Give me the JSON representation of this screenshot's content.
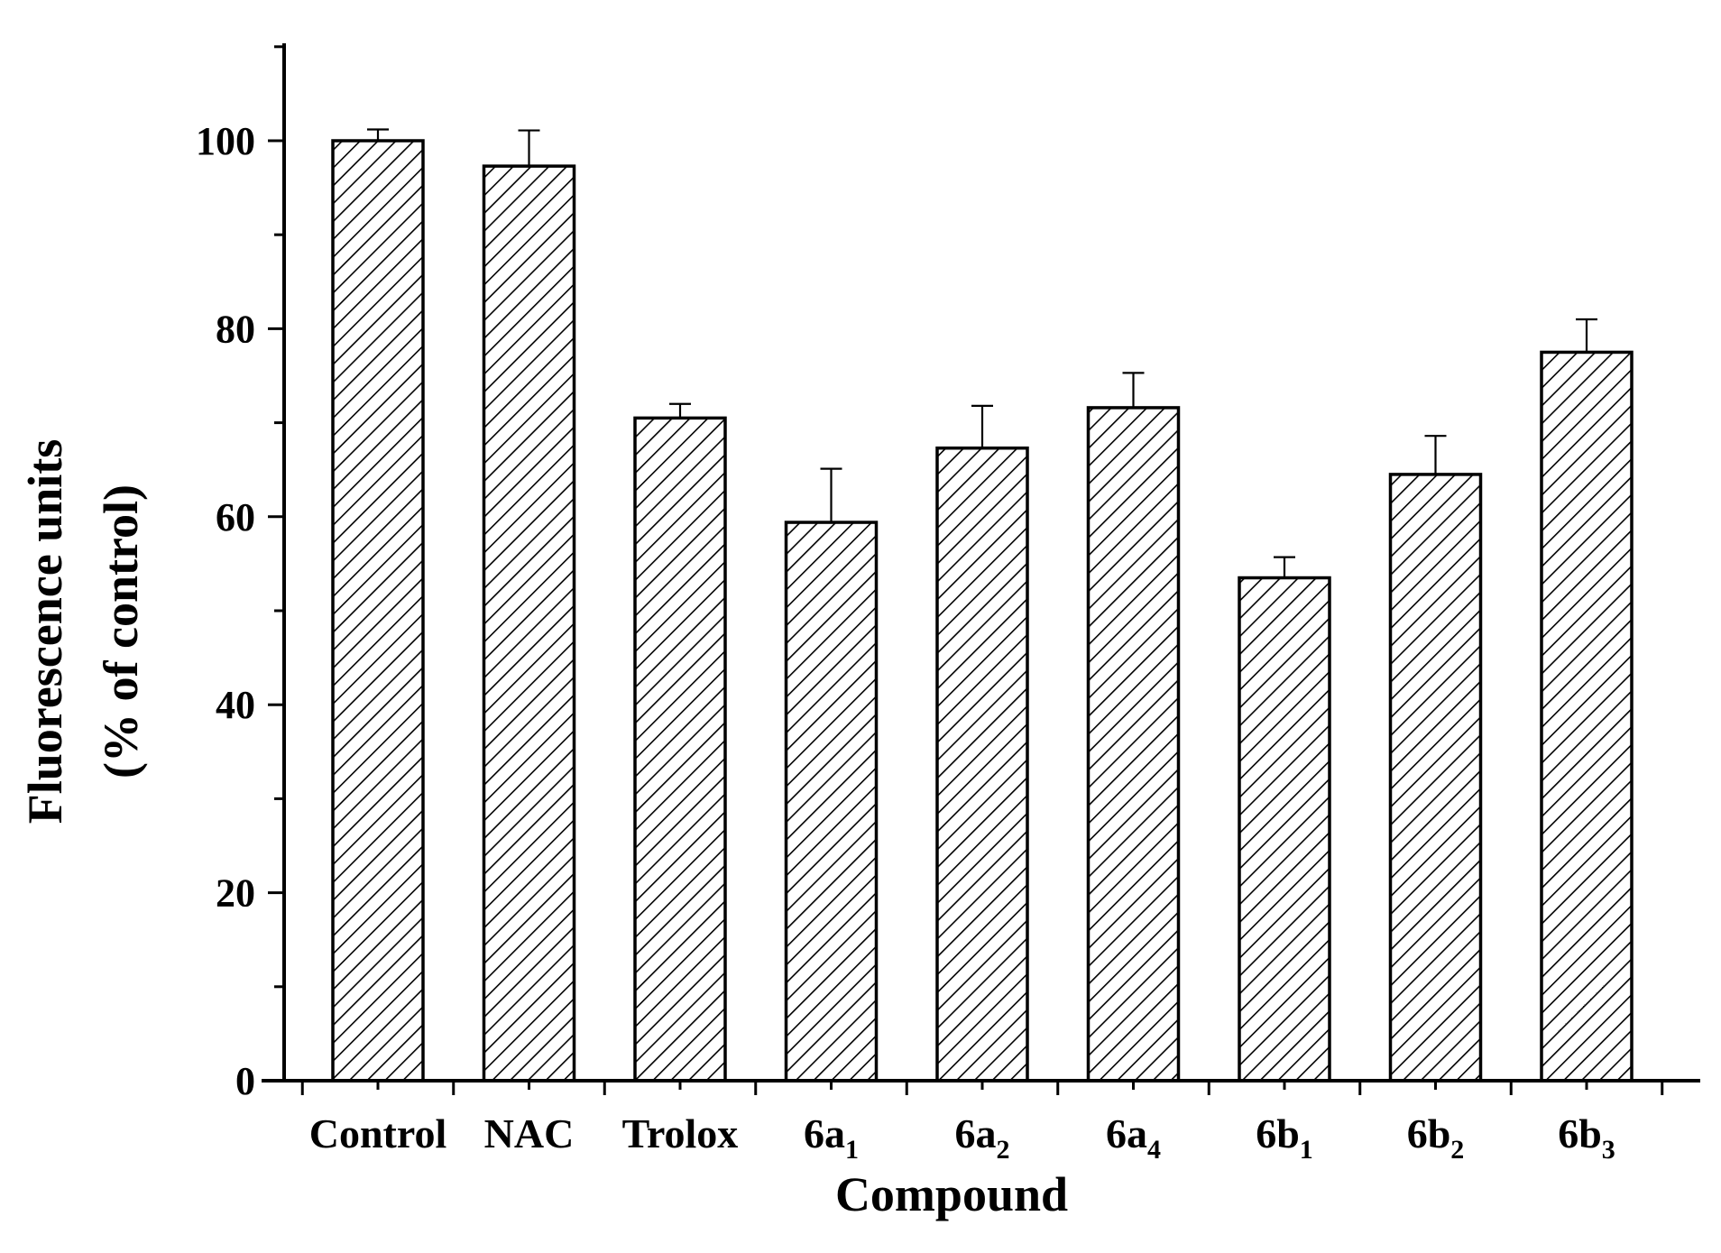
{
  "chart_data": {
    "type": "bar",
    "categories": [
      {
        "base": "Control",
        "sub": ""
      },
      {
        "base": "NAC",
        "sub": ""
      },
      {
        "base": "Trolox",
        "sub": ""
      },
      {
        "base": "6a",
        "sub": "1"
      },
      {
        "base": "6a",
        "sub": "2"
      },
      {
        "base": "6a",
        "sub": "4"
      },
      {
        "base": "6b",
        "sub": "1"
      },
      {
        "base": "6b",
        "sub": "2"
      },
      {
        "base": "6b",
        "sub": "3"
      }
    ],
    "values": [
      100,
      97.3,
      70.5,
      59.4,
      67.3,
      71.6,
      53.5,
      64.5,
      77.5
    ],
    "errors": [
      1.2,
      3.8,
      1.5,
      5.7,
      4.5,
      3.7,
      2.2,
      4.1,
      3.5
    ],
    "xlabel": "Compound",
    "ylabel_lines": [
      "Fluorescence units",
      "(% of control)"
    ],
    "ylim": [
      0,
      110
    ],
    "yticks": [
      0,
      20,
      40,
      60,
      80,
      100
    ],
    "bar_fill": "hatched",
    "grid": false,
    "legend": "none",
    "colors": {
      "bar_stroke": "#000000",
      "hatch": "#000000",
      "background": "#ffffff"
    }
  }
}
